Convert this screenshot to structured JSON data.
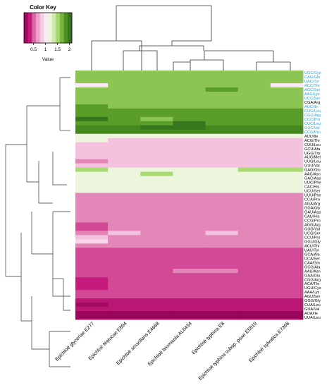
{
  "chart_data": {
    "type": "heatmap",
    "legend": {
      "title": "Color Key",
      "ticks": [
        "0.5",
        "1",
        "1.5",
        "2"
      ],
      "tick_values": [
        0.5,
        1,
        1.5,
        2
      ],
      "range": [
        0.1,
        2.1
      ],
      "axis_label": "Value"
    },
    "colors": {
      "low": "#8e0152",
      "mid": "#f7f7f7",
      "high": "#276419",
      "row_label_highlight": "#2a9fd6",
      "row_label_default": "#000000"
    },
    "columns": [
      "Epichloë glyceriae E277",
      "Epichloë festucae E894",
      "Epichloë amarillans E4668",
      "Epichloë bromicola AL0434",
      "Epichloë typhina E8",
      "Epichloë typhina subsp. poae E5819",
      "Epichloë sylvatica E7368"
    ],
    "column_dendrogram_order": [
      "E277",
      "E894",
      "E4668",
      "AL0434",
      "E8",
      "E5819",
      "E7368"
    ],
    "rows": [
      {
        "label": "UGC/Cys",
        "highlight": true,
        "values": [
          1.6,
          1.6,
          1.6,
          1.6,
          1.6,
          1.6,
          1.6
        ]
      },
      {
        "label": "CAG/Gln",
        "highlight": true,
        "values": [
          1.6,
          1.6,
          1.6,
          1.6,
          1.6,
          1.6,
          1.6
        ]
      },
      {
        "label": "UAC/Tyr",
        "highlight": true,
        "values": [
          1.6,
          1.6,
          1.6,
          1.6,
          1.6,
          1.6,
          1.6
        ]
      },
      {
        "label": "ACC/Thr",
        "highlight": true,
        "values": [
          1.0,
          1.6,
          1.6,
          1.6,
          1.6,
          1.6,
          1.0
        ]
      },
      {
        "label": "AGC/Ser",
        "highlight": true,
        "values": [
          1.6,
          1.6,
          1.6,
          1.6,
          1.8,
          1.6,
          1.6
        ]
      },
      {
        "label": "AAG/Lys",
        "highlight": true,
        "values": [
          1.6,
          1.6,
          1.6,
          1.6,
          1.6,
          1.6,
          1.6
        ]
      },
      {
        "label": "UCC/Ser",
        "highlight": true,
        "values": [
          1.6,
          1.6,
          1.6,
          1.6,
          1.6,
          1.6,
          1.6
        ]
      },
      {
        "label": "CGA/Arg",
        "highlight": false,
        "values": [
          1.6,
          1.6,
          1.6,
          1.6,
          1.6,
          1.6,
          1.6
        ]
      },
      {
        "label": "AUC/Ile",
        "highlight": true,
        "values": [
          1.8,
          1.6,
          1.6,
          1.6,
          1.6,
          1.6,
          1.6
        ]
      },
      {
        "label": "CUG/Leu",
        "highlight": true,
        "values": [
          1.8,
          1.8,
          1.8,
          1.8,
          1.8,
          1.8,
          1.8
        ]
      },
      {
        "label": "CGC/Arg",
        "highlight": true,
        "values": [
          1.8,
          1.8,
          1.8,
          1.8,
          1.8,
          1.8,
          1.8
        ]
      },
      {
        "label": "CCC/Pro",
        "highlight": true,
        "values": [
          2.0,
          1.8,
          1.6,
          1.8,
          1.8,
          1.8,
          1.8
        ]
      },
      {
        "label": "CUC/Leu",
        "highlight": true,
        "values": [
          1.8,
          1.8,
          1.8,
          2.0,
          1.8,
          1.8,
          1.8
        ]
      },
      {
        "label": "GUC/Val",
        "highlight": true,
        "values": [
          1.9,
          1.9,
          2.0,
          2.0,
          1.9,
          1.9,
          1.9
        ]
      },
      {
        "label": "CCG/Pro",
        "highlight": true,
        "values": [
          1.9,
          1.9,
          1.9,
          1.9,
          1.9,
          1.9,
          1.9
        ]
      },
      {
        "label": "AUU/Ile",
        "highlight": false,
        "values": [
          1.2,
          1.2,
          1.2,
          1.2,
          1.2,
          1.2,
          1.2
        ]
      },
      {
        "label": "ACG/Thr",
        "highlight": false,
        "values": [
          1.2,
          0.8,
          0.8,
          0.8,
          0.8,
          0.8,
          0.8
        ]
      },
      {
        "label": "CUU/Leu",
        "highlight": false,
        "values": [
          0.8,
          0.8,
          0.8,
          0.8,
          0.8,
          0.8,
          0.8
        ]
      },
      {
        "label": "GCU/Ala",
        "highlight": false,
        "values": [
          0.8,
          0.8,
          0.8,
          0.8,
          0.8,
          0.8,
          0.8
        ]
      },
      {
        "label": "UGG/Trp",
        "highlight": false,
        "values": [
          0.8,
          0.8,
          0.8,
          0.8,
          0.8,
          0.8,
          0.8
        ]
      },
      {
        "label": "AUG/Met",
        "highlight": false,
        "values": [
          0.8,
          0.8,
          0.8,
          0.8,
          0.8,
          0.8,
          0.8
        ]
      },
      {
        "label": "UUG/Leu",
        "highlight": false,
        "values": [
          0.6,
          0.8,
          0.8,
          0.8,
          0.8,
          0.8,
          0.8
        ]
      },
      {
        "label": "GUU/Val",
        "highlight": false,
        "values": [
          0.8,
          0.8,
          0.8,
          0.8,
          0.8,
          0.8,
          0.8
        ]
      },
      {
        "label": "GAG/Glu",
        "highlight": false,
        "values": [
          1.5,
          1.2,
          1.2,
          1.2,
          1.2,
          1.5,
          1.5
        ]
      },
      {
        "label": "AAC/Asn",
        "highlight": false,
        "values": [
          1.2,
          1.2,
          1.5,
          1.2,
          1.2,
          1.2,
          1.2
        ]
      },
      {
        "label": "GAC/Asp",
        "highlight": false,
        "values": [
          1.2,
          1.2,
          1.2,
          1.2,
          1.2,
          1.2,
          1.2
        ]
      },
      {
        "label": "UUC/Phe",
        "highlight": false,
        "values": [
          1.2,
          1.2,
          1.2,
          1.2,
          1.2,
          1.2,
          1.2
        ]
      },
      {
        "label": "CAC/His",
        "highlight": false,
        "values": [
          1.2,
          1.2,
          1.2,
          1.2,
          1.2,
          1.2,
          1.2
        ]
      },
      {
        "label": "UCU/Ser",
        "highlight": false,
        "values": [
          1.2,
          1.2,
          1.2,
          1.2,
          1.2,
          1.2,
          1.2
        ]
      },
      {
        "label": "UUU/Phe",
        "highlight": false,
        "values": [
          0.6,
          0.6,
          0.6,
          0.6,
          0.6,
          0.6,
          0.6
        ]
      },
      {
        "label": "CCA/Pro",
        "highlight": false,
        "values": [
          0.6,
          0.6,
          0.6,
          0.6,
          0.6,
          0.6,
          0.6
        ]
      },
      {
        "label": "AGA/Arg",
        "highlight": false,
        "values": [
          0.6,
          0.6,
          0.6,
          0.6,
          0.6,
          0.6,
          0.6
        ]
      },
      {
        "label": "GGA/Gly",
        "highlight": false,
        "values": [
          0.6,
          0.6,
          0.6,
          0.6,
          0.6,
          0.6,
          0.6
        ]
      },
      {
        "label": "GAU/Asp",
        "highlight": false,
        "values": [
          0.6,
          0.6,
          0.6,
          0.6,
          0.6,
          0.6,
          0.6
        ]
      },
      {
        "label": "CAU/His",
        "highlight": false,
        "values": [
          0.6,
          0.6,
          0.6,
          0.6,
          0.6,
          0.6,
          0.6
        ]
      },
      {
        "label": "CCG/Pro",
        "highlight": false,
        "values": [
          0.6,
          0.6,
          0.6,
          0.6,
          0.6,
          0.6,
          0.6
        ]
      },
      {
        "label": "AGG/Arg",
        "highlight": false,
        "values": [
          0.45,
          0.6,
          0.6,
          0.6,
          0.6,
          0.6,
          0.6
        ]
      },
      {
        "label": "GUG/Val",
        "highlight": false,
        "values": [
          0.45,
          0.6,
          0.6,
          0.6,
          0.6,
          0.6,
          0.6
        ]
      },
      {
        "label": "UCG/Ser",
        "highlight": false,
        "values": [
          0.6,
          0.8,
          0.6,
          0.6,
          0.8,
          0.6,
          0.6
        ]
      },
      {
        "label": "CCU/Pro",
        "highlight": false,
        "values": [
          0.8,
          0.6,
          0.6,
          0.6,
          0.6,
          0.6,
          0.6
        ]
      },
      {
        "label": "GGU/Gly",
        "highlight": false,
        "values": [
          0.9,
          0.6,
          0.6,
          0.6,
          0.6,
          0.6,
          0.6
        ]
      },
      {
        "label": "ACU/Thr",
        "highlight": false,
        "values": [
          0.6,
          0.6,
          0.6,
          0.6,
          0.6,
          0.6,
          0.6
        ]
      },
      {
        "label": "UAU/Tyr",
        "highlight": false,
        "values": [
          0.45,
          0.45,
          0.45,
          0.45,
          0.45,
          0.45,
          0.45
        ]
      },
      {
        "label": "GCA/Ala",
        "highlight": false,
        "values": [
          0.45,
          0.45,
          0.45,
          0.45,
          0.45,
          0.45,
          0.45
        ]
      },
      {
        "label": "UCA/Ser",
        "highlight": false,
        "values": [
          0.45,
          0.45,
          0.45,
          0.45,
          0.45,
          0.45,
          0.45
        ]
      },
      {
        "label": "CAA/Gln",
        "highlight": false,
        "values": [
          0.45,
          0.45,
          0.45,
          0.45,
          0.45,
          0.45,
          0.45
        ]
      },
      {
        "label": "GCG/Ala",
        "highlight": false,
        "values": [
          0.45,
          0.45,
          0.45,
          0.45,
          0.45,
          0.45,
          0.45
        ]
      },
      {
        "label": "AAU/Asn",
        "highlight": false,
        "values": [
          0.45,
          0.45,
          0.45,
          0.6,
          0.6,
          0.45,
          0.45
        ]
      },
      {
        "label": "GAA/Glu",
        "highlight": false,
        "values": [
          0.45,
          0.45,
          0.45,
          0.45,
          0.45,
          0.45,
          0.45
        ]
      },
      {
        "label": "CGG/Arg",
        "highlight": false,
        "values": [
          0.35,
          0.45,
          0.45,
          0.45,
          0.45,
          0.45,
          0.45
        ]
      },
      {
        "label": "ACA/Thr",
        "highlight": false,
        "values": [
          0.35,
          0.45,
          0.45,
          0.45,
          0.45,
          0.45,
          0.45
        ]
      },
      {
        "label": "UGU/Cys",
        "highlight": false,
        "values": [
          0.35,
          0.45,
          0.45,
          0.45,
          0.45,
          0.45,
          0.45
        ]
      },
      {
        "label": "AAA/Lys",
        "highlight": false,
        "values": [
          0.45,
          0.45,
          0.45,
          0.45,
          0.45,
          0.45,
          0.45
        ]
      },
      {
        "label": "AGU/Ser",
        "highlight": false,
        "values": [
          0.45,
          0.45,
          0.45,
          0.45,
          0.45,
          0.45,
          0.45
        ]
      },
      {
        "label": "GGG/Gly",
        "highlight": false,
        "values": [
          0.3,
          0.3,
          0.3,
          0.3,
          0.3,
          0.3,
          0.3
        ]
      },
      {
        "label": "CUA/Leu",
        "highlight": false,
        "values": [
          0.2,
          0.3,
          0.3,
          0.3,
          0.3,
          0.3,
          0.3
        ]
      },
      {
        "label": "GUA/Val",
        "highlight": false,
        "values": [
          0.3,
          0.3,
          0.3,
          0.3,
          0.3,
          0.3,
          0.3
        ]
      },
      {
        "label": "AUA/Ile",
        "highlight": false,
        "values": [
          0.15,
          0.15,
          0.15,
          0.15,
          0.15,
          0.15,
          0.15
        ]
      },
      {
        "label": "UUA/Leu",
        "highlight": false,
        "values": [
          0.15,
          0.15,
          0.15,
          0.15,
          0.15,
          0.15,
          0.15
        ]
      }
    ]
  }
}
